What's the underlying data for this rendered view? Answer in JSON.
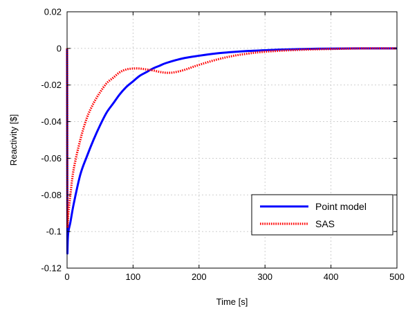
{
  "chart_data": {
    "type": "line",
    "xlabel": "Time [s]",
    "ylabel": "Reactivity [$]",
    "xlim": [
      0,
      500
    ],
    "ylim": [
      -0.12,
      0.02
    ],
    "xticks": [
      0,
      100,
      200,
      300,
      400,
      500
    ],
    "yticks": [
      0.02,
      0,
      -0.02,
      -0.04,
      -0.06,
      -0.08,
      -0.1,
      -0.12
    ],
    "xtick_labels": [
      "0",
      "100",
      "200",
      "300",
      "400",
      "500"
    ],
    "ytick_labels": [
      "0.02",
      "0",
      "-0.02",
      "-0.04",
      "-0.06",
      "-0.08",
      "-0.1",
      "-0.12"
    ],
    "grid": true,
    "legend_position": "bottom-right",
    "series": [
      {
        "name": "Point model",
        "color": "#0000ff",
        "style": "solid",
        "x": [
          0,
          0.5,
          1,
          2,
          5,
          10,
          20,
          30,
          40,
          50,
          60,
          70,
          80,
          90,
          100,
          110,
          120,
          130,
          140,
          150,
          175,
          200,
          225,
          250,
          275,
          300,
          325,
          350,
          375,
          400,
          450,
          500
        ],
        "y": [
          0,
          -0.112,
          -0.105,
          -0.1,
          -0.095,
          -0.085,
          -0.069,
          -0.059,
          -0.05,
          -0.042,
          -0.035,
          -0.03,
          -0.025,
          -0.021,
          -0.018,
          -0.015,
          -0.013,
          -0.011,
          -0.0095,
          -0.008,
          -0.0055,
          -0.004,
          -0.0028,
          -0.002,
          -0.0014,
          -0.001,
          -0.0006,
          -0.0004,
          -0.0002,
          -0.0001,
          0,
          0
        ]
      },
      {
        "name": "SAS",
        "color": "#ff0000",
        "style": "dotted",
        "x": [
          0,
          0.5,
          1,
          2,
          5,
          10,
          20,
          30,
          40,
          50,
          60,
          70,
          80,
          90,
          100,
          110,
          120,
          130,
          140,
          150,
          160,
          170,
          180,
          190,
          200,
          225,
          250,
          275,
          300,
          350,
          400,
          450,
          500
        ],
        "y": [
          0,
          -0.098,
          -0.095,
          -0.09,
          -0.08,
          -0.066,
          -0.05,
          -0.038,
          -0.03,
          -0.024,
          -0.019,
          -0.016,
          -0.013,
          -0.0115,
          -0.011,
          -0.011,
          -0.0115,
          -0.012,
          -0.0128,
          -0.0133,
          -0.0132,
          -0.0125,
          -0.0115,
          -0.0102,
          -0.009,
          -0.0063,
          -0.0042,
          -0.0028,
          -0.0018,
          -0.0008,
          -0.0003,
          0,
          0
        ]
      }
    ]
  }
}
